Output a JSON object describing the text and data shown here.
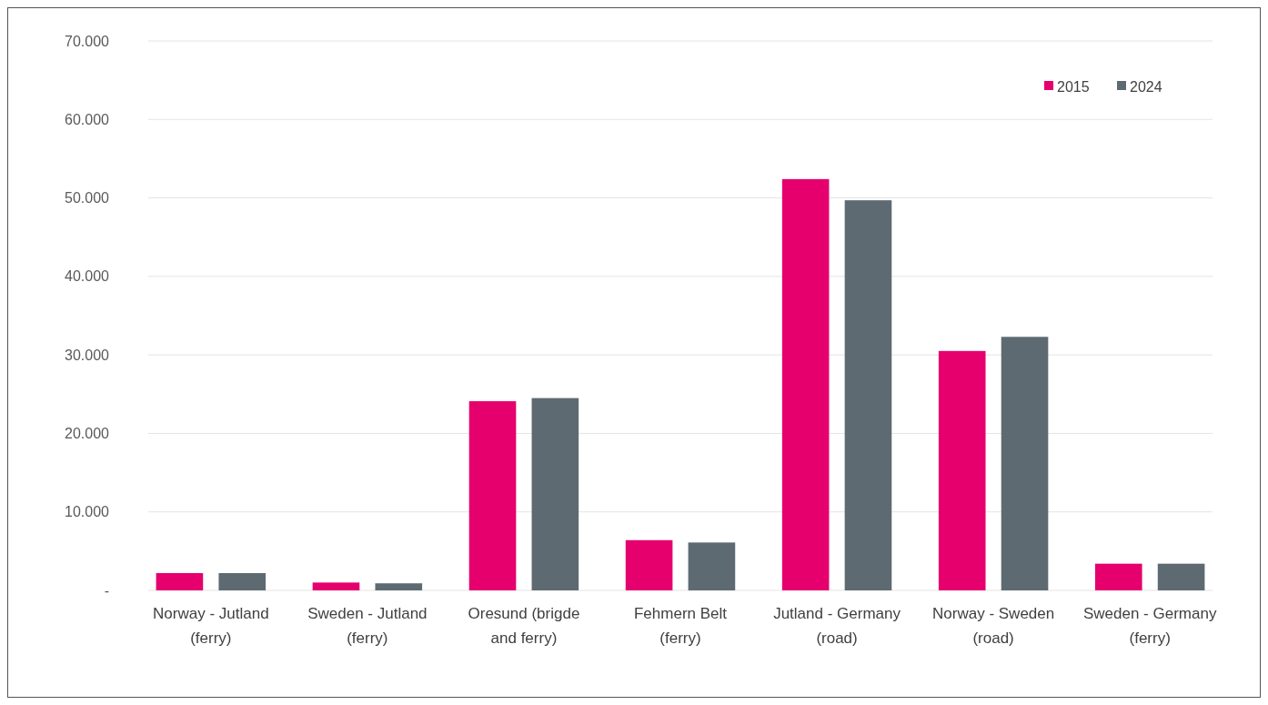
{
  "chart_data": {
    "type": "bar",
    "categories": [
      "Norway - Jutland (ferry)",
      "Sweden - Jutland (ferry)",
      "Oresund (brigde and ferry)",
      "Fehmern Belt (ferry)",
      "Jutland - Germany (road)",
      "Norway - Sweden (road)",
      "Sweden - Germany (ferry)"
    ],
    "series": [
      {
        "name": "2015",
        "color": "#e5006d",
        "values": [
          2200,
          1000,
          24100,
          6400,
          52400,
          30500,
          3400
        ]
      },
      {
        "name": "2024",
        "color": "#5e6a71",
        "values": [
          2200,
          900,
          24500,
          6100,
          49700,
          32300,
          3400
        ]
      }
    ],
    "ylim": [
      0,
      70000
    ],
    "yticks": [
      {
        "value": 0,
        "label": "-"
      },
      {
        "value": 10000,
        "label": "10.000"
      },
      {
        "value": 20000,
        "label": "20.000"
      },
      {
        "value": 30000,
        "label": "30.000"
      },
      {
        "value": 40000,
        "label": "40.000"
      },
      {
        "value": 50000,
        "label": "50.000"
      },
      {
        "value": 60000,
        "label": "60.000"
      },
      {
        "value": 70000,
        "label": "70.000"
      }
    ],
    "grid": "y",
    "legend": "top right"
  }
}
